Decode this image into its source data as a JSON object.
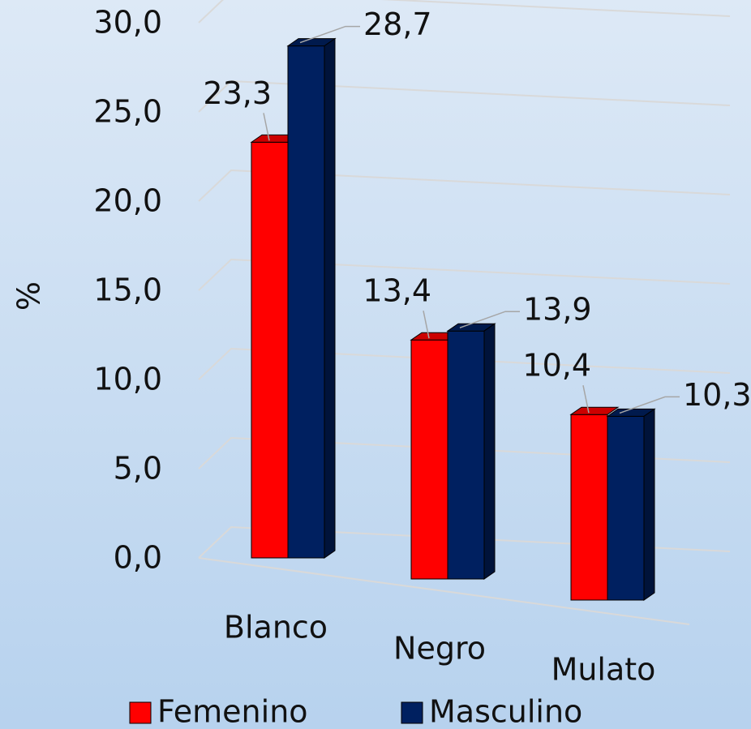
{
  "chart_data": {
    "type": "bar3d",
    "y_label": "%",
    "categories": [
      "Blanco",
      "Negro",
      "Mulato"
    ],
    "series": [
      {
        "name": "Femenino",
        "color": "#ff0000",
        "values": [
          23.3,
          13.4,
          10.4
        ],
        "value_labels": [
          "23,3",
          "13,4",
          "10,4"
        ]
      },
      {
        "name": "Masculino",
        "color": "#002060",
        "values": [
          28.7,
          13.9,
          10.3
        ],
        "value_labels": [
          "28,7",
          "13,9",
          "10,3"
        ]
      }
    ],
    "ylim": [
      0,
      30
    ],
    "yticks": [
      {
        "value": 0,
        "label": "0,0"
      },
      {
        "value": 5,
        "label": "5,0"
      },
      {
        "value": 10,
        "label": "10,0"
      },
      {
        "value": 15,
        "label": "15,0"
      },
      {
        "value": 20,
        "label": "20,0"
      },
      {
        "value": 25,
        "label": "25,0"
      },
      {
        "value": 30,
        "label": "30,0"
      }
    ],
    "grid": true,
    "legend": "bottom"
  }
}
